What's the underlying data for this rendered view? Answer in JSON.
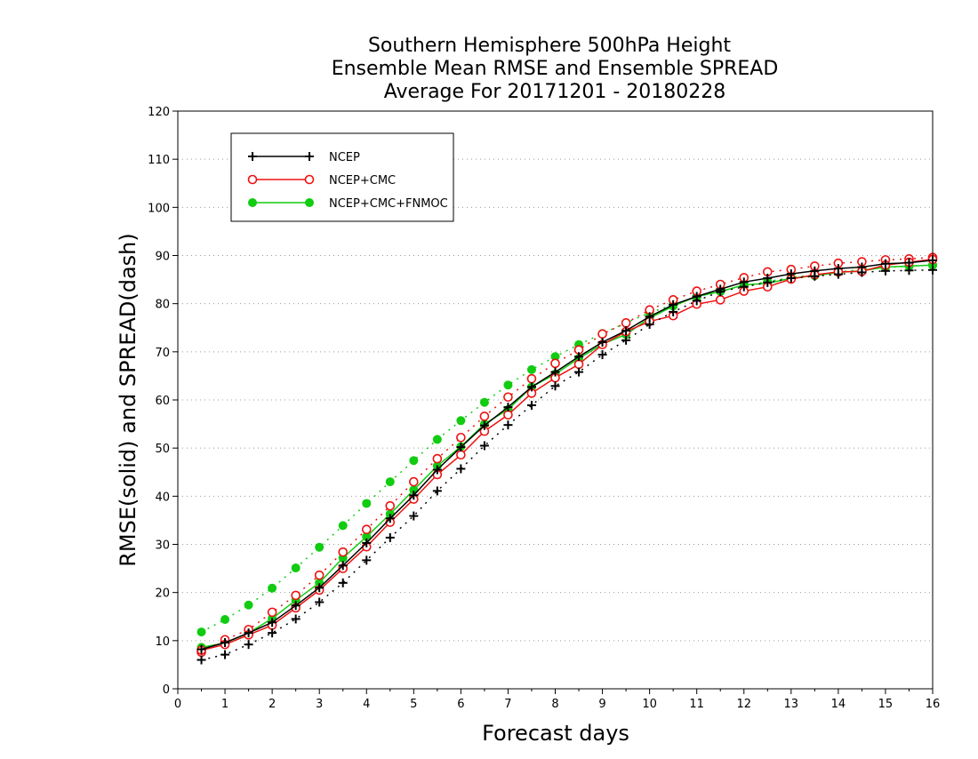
{
  "chart_data": {
    "type": "line",
    "title_lines": [
      "Southern Hemisphere 500hPa Height",
      "Ensemble Mean RMSE and Ensemble SPREAD",
      "Average For 20171201 - 20180228"
    ],
    "xlabel": "Forecast days",
    "ylabel": "RMSE(solid) and SPREAD(dash)",
    "xlim": [
      0,
      16
    ],
    "ylim": [
      0,
      120
    ],
    "xticks": [
      0,
      1,
      2,
      3,
      4,
      5,
      6,
      7,
      8,
      9,
      10,
      11,
      12,
      13,
      14,
      15,
      16
    ],
    "yticks": [
      0,
      10,
      20,
      30,
      40,
      50,
      60,
      70,
      80,
      90,
      100,
      110,
      120
    ],
    "grid": "dotted horizontal",
    "legend_position": "top-left",
    "x": [
      0.5,
      1,
      1.5,
      2,
      2.5,
      3,
      3.5,
      4,
      4.5,
      5,
      5.5,
      6,
      6.5,
      7,
      7.5,
      8,
      8.5,
      9,
      9.5,
      10,
      10.5,
      11,
      11.5,
      12,
      12.5,
      13,
      13.5,
      14,
      14.5,
      15,
      15.5,
      16
    ],
    "series": [
      {
        "name": "NCEP",
        "color": "#000000",
        "marker": "plus",
        "rmse": [
          8.2,
          9.6,
          11.6,
          13.8,
          17.3,
          21.0,
          25.6,
          30.3,
          35.4,
          40.2,
          45.5,
          50.2,
          54.7,
          58.5,
          62.7,
          65.8,
          69.0,
          72.0,
          74.4,
          77.3,
          79.8,
          81.5,
          83.0,
          84.5,
          85.3,
          86.2,
          86.8,
          87.3,
          87.6,
          88.3,
          88.5,
          89.0
        ],
        "spread": [
          6.0,
          7.1,
          9.2,
          11.6,
          14.5,
          18.0,
          22.0,
          26.7,
          31.4,
          35.9,
          41.1,
          45.7,
          50.5,
          54.8,
          58.9,
          62.9,
          65.8,
          69.4,
          72.4,
          75.7,
          78.3,
          80.6,
          82.5,
          83.5,
          84.4,
          85.3,
          85.7,
          86.1,
          86.5,
          86.8,
          86.9,
          87.0
        ]
      },
      {
        "name": "NCEP+CMC",
        "color": "#ee1111",
        "marker": "open-circle",
        "rmse": [
          8.0,
          9.2,
          11.2,
          13.2,
          16.8,
          20.5,
          25.0,
          29.5,
          34.6,
          39.4,
          44.5,
          48.6,
          53.5,
          56.9,
          61.4,
          64.6,
          67.4,
          71.5,
          74.2,
          76.3,
          77.5,
          79.9,
          80.8,
          82.6,
          83.5,
          85.1,
          86.0,
          86.6,
          86.7,
          88.0,
          88.6,
          89.2
        ],
        "spread": [
          7.6,
          10.2,
          12.3,
          15.9,
          19.4,
          23.6,
          28.4,
          33.1,
          38.0,
          43.0,
          47.8,
          52.2,
          56.6,
          60.6,
          64.4,
          67.6,
          70.4,
          73.7,
          76.0,
          78.7,
          80.8,
          82.6,
          84.0,
          85.4,
          86.6,
          87.1,
          87.8,
          88.4,
          88.7,
          89.1,
          89.3,
          89.6
        ]
      },
      {
        "name": "NCEP+CMC+FNMOC",
        "color": "#11cc11",
        "marker": "filled-circle",
        "rmse": [
          8.6,
          9.5,
          11.6,
          14.6,
          18.4,
          22.0,
          27.2,
          31.6,
          36.3,
          41.3,
          46.3,
          50.3,
          55.0,
          58.0,
          62.7,
          65.4,
          68.6,
          71.6,
          73.6,
          77.0,
          79.5,
          81.5,
          82.5,
          83.9,
          84.2,
          85.3,
          85.8,
          86.5,
          86.8,
          87.6,
          87.8,
          88.0
        ],
        "spread": [
          11.8,
          14.4,
          17.4,
          20.9,
          25.1,
          29.4,
          33.9,
          38.5,
          43.0,
          47.4,
          51.8,
          55.7,
          59.5,
          63.1,
          66.3,
          69.0,
          71.5,
          73.8,
          76.0,
          78.1,
          79.8,
          81.4,
          82.6,
          83.7,
          84.6,
          85.4,
          86.0,
          86.6,
          87.1,
          87.5,
          87.8,
          88.0
        ]
      }
    ]
  }
}
